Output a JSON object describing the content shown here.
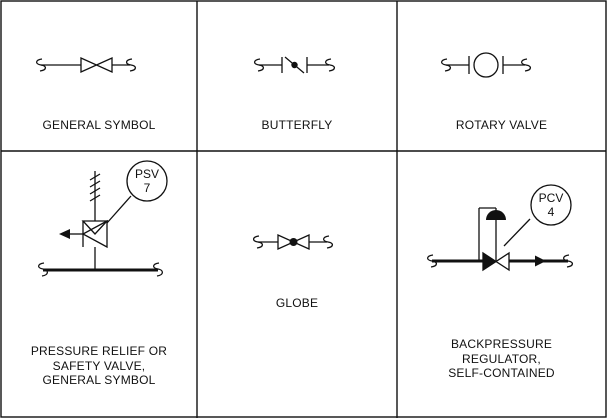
{
  "cells": {
    "general": {
      "label": "GENERAL SYMBOL",
      "icon": "gate-valve-general-icon"
    },
    "butterfly": {
      "label": "BUTTERFLY",
      "icon": "butterfly-valve-icon"
    },
    "rotary": {
      "label": "ROTARY VALVE",
      "icon": "rotary-valve-icon"
    },
    "relief": {
      "label_lines": [
        "PRESSURE RELIEF OR",
        "SAFETY VALVE,",
        "GENERAL SYMBOL"
      ],
      "tag_letters": "PSV",
      "tag_number": "7",
      "icon": "pressure-relief-valve-icon"
    },
    "globe": {
      "label": "GLOBE",
      "icon": "globe-valve-icon"
    },
    "backpressure": {
      "label_lines": [
        "BACKPRESSURE",
        "REGULATOR,",
        "SELF-CONTAINED"
      ],
      "tag_letters": "PCV",
      "tag_number": "4",
      "icon": "backpressure-regulator-icon"
    }
  }
}
